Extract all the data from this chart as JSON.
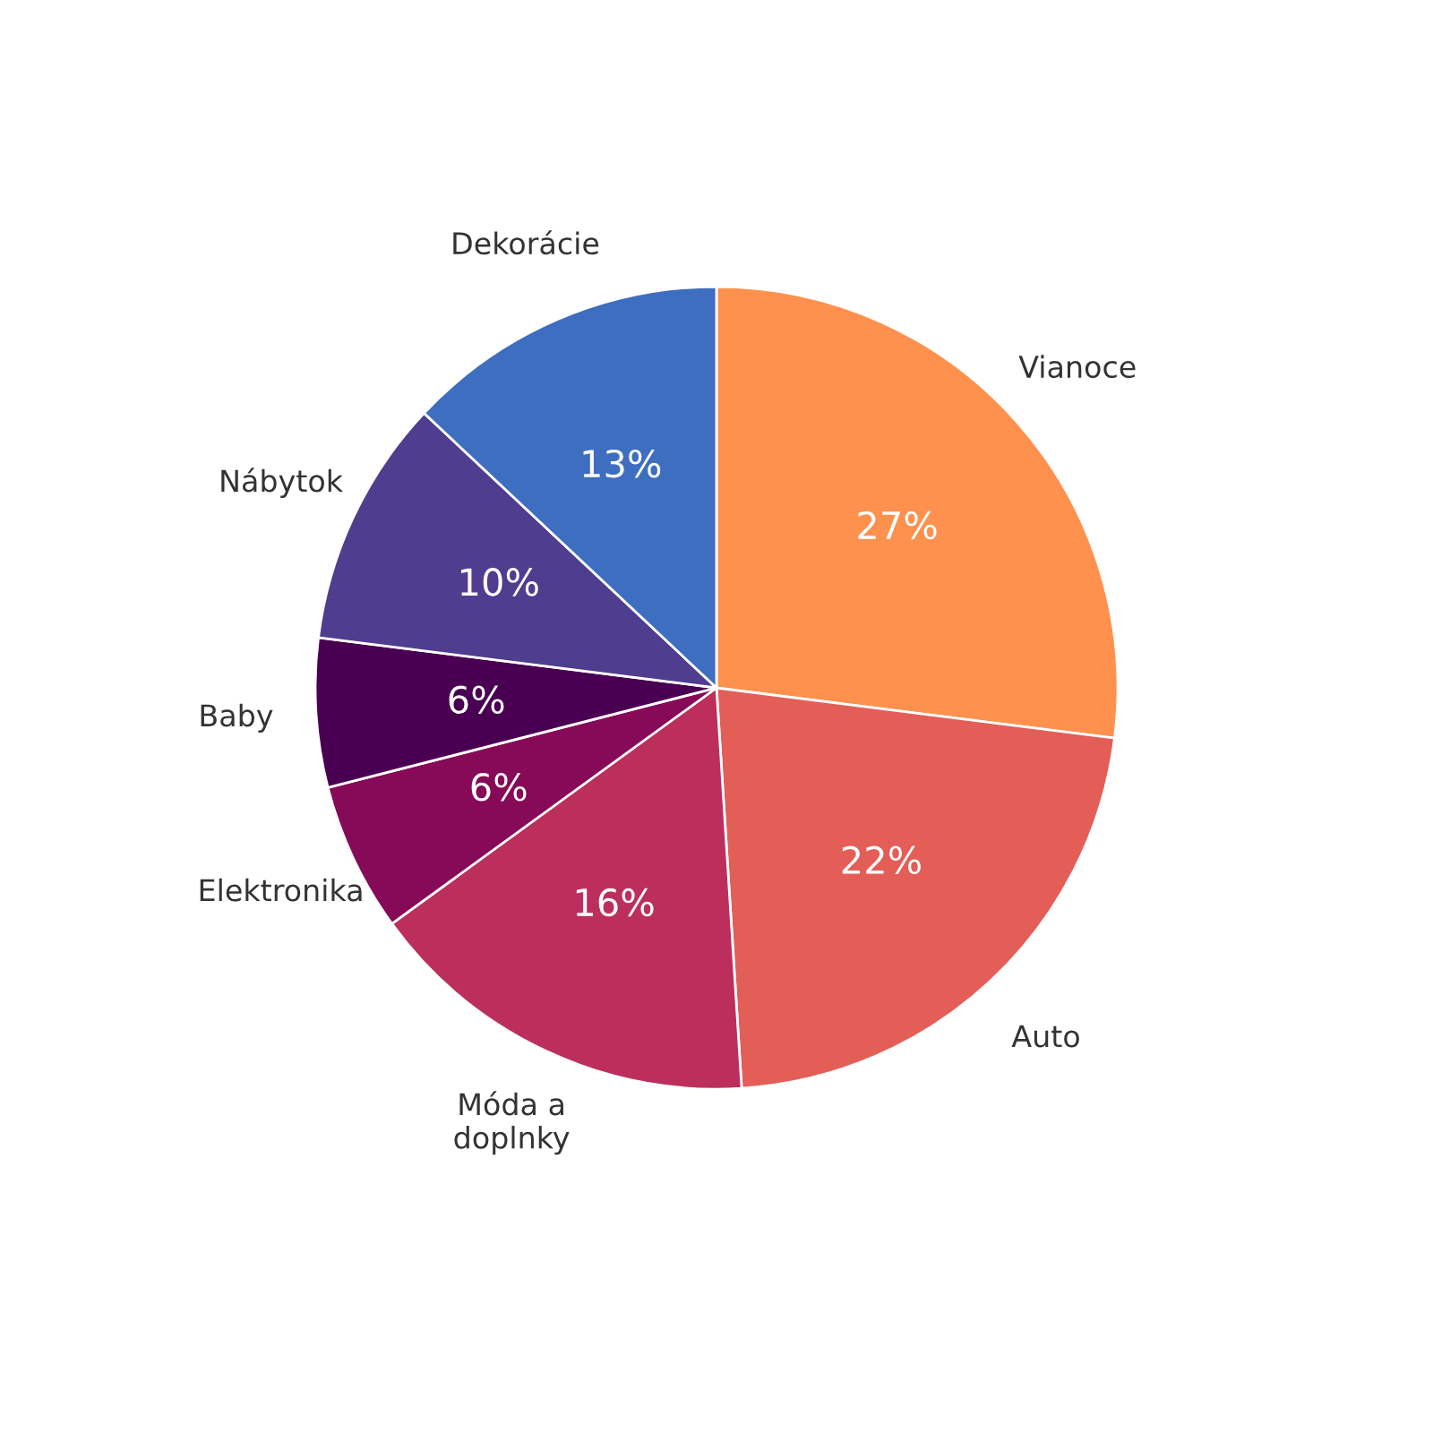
{
  "chart_data": {
    "type": "pie",
    "categories": [
      "Vianoce",
      "Auto",
      "Móda a\ndoplnky",
      "Elektronika",
      "Baby",
      "Nábytok",
      "Dekorácie"
    ],
    "values": [
      27,
      22,
      16,
      6,
      6,
      10,
      13
    ],
    "value_labels": [
      "27%",
      "22%",
      "16%",
      "6%",
      "6%",
      "10%",
      "13%"
    ],
    "colors": [
      "#fe914e",
      "#e35e57",
      "#bc2f5c",
      "#870a58",
      "#4a0052",
      "#4f3d8f",
      "#3e6ec0"
    ]
  }
}
